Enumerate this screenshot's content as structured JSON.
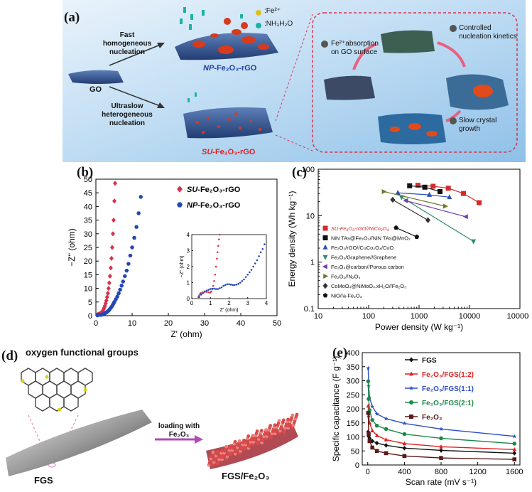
{
  "panel_a": {
    "label": "(a)",
    "legend_fe": ":Fe²⁺",
    "legend_nh3": ":NH₃H₂O",
    "go": "GO",
    "fast_line1": "Fast",
    "fast_line2": "homogeneous",
    "fast_line3": "nucleation",
    "slow_line1": "Ultraslow",
    "slow_line2": "heterogeneous",
    "slow_line3": "nucleation",
    "np_prefix": "NP",
    "np_suffix": "-Fe₂O₃-rGO",
    "su_prefix": "SU",
    "su_suffix": "-Fe₂O₃-rGO",
    "step1_line1": "Fe²⁺absorption",
    "step1_line2": "on GO surface",
    "step2_line1": "Controlled",
    "step2_line2": "nucleation kinetics",
    "step3_line1": "Slow crystal",
    "step3_line2": "growth",
    "colors": {
      "bg": "#a9cfee",
      "np": "#1f3fa8",
      "su": "#e02020",
      "sheet": "#2e4f8a",
      "particle": "#d83a1e"
    }
  },
  "panel_b_label": "(b)",
  "panel_c_label": "(c)",
  "panel_d": {
    "label": "(d)",
    "title": "oxygen functional groups",
    "fgs": "FGS",
    "arrow_line1": "loading with",
    "arrow_line2": "Fe₂O₃",
    "product": "FGS/Fe₂O₃"
  },
  "panel_e_label": "(e)",
  "chart_data": [
    {
      "id": "b",
      "type": "scatter",
      "xlabel": "Z' (ohm)",
      "ylabel": "−Z'' (ohm)",
      "xlim": [
        0,
        50
      ],
      "ylim": [
        0,
        50
      ],
      "xticks": [
        0,
        10,
        20,
        30,
        40,
        50
      ],
      "yticks": [
        0,
        5,
        10,
        15,
        20,
        25,
        30,
        35,
        40,
        45,
        50
      ],
      "legend": [
        {
          "prefix": "SU",
          "suffix": "-Fe₂O₃-rGO",
          "color": "#d8324a",
          "marker": "diamond"
        },
        {
          "prefix": "NP",
          "suffix": "-Fe₂O₃-rGO",
          "color": "#2546b5",
          "marker": "hexagon"
        }
      ],
      "series": [
        {
          "name": "SU-Fe₂O₃-rGO",
          "color": "#d8324a",
          "x": [
            0.4,
            0.5,
            0.7,
            0.9,
            1.1,
            1.3,
            1.5,
            1.7,
            1.9,
            2.1,
            2.3,
            2.5,
            2.7,
            2.9,
            3.1,
            3.3,
            3.5,
            3.7,
            3.9,
            4.1,
            4.3,
            4.5,
            4.7,
            4.9,
            5.1,
            5.3
          ],
          "y": [
            0.2,
            0.4,
            0.5,
            0.6,
            0.7,
            0.9,
            1.1,
            1.4,
            1.8,
            2.3,
            2.9,
            3.6,
            4.5,
            5.5,
            6.8,
            8.2,
            10,
            12,
            14.5,
            17.5,
            21,
            25,
            30,
            35,
            42,
            48.5
          ]
        },
        {
          "name": "NP-Fe₂O₃-rGO",
          "color": "#2546b5",
          "x": [
            0.4,
            0.6,
            0.9,
            1.2,
            1.5,
            1.8,
            2.1,
            2.4,
            2.7,
            3.0,
            3.3,
            3.6,
            3.9,
            4.2,
            4.5,
            4.8,
            5.1,
            5.5,
            5.9,
            6.3,
            6.7,
            7.1,
            7.5,
            8.0,
            8.5,
            9.0,
            9.5,
            10.0,
            10.6,
            11.2,
            11.8,
            12.4
          ],
          "y": [
            0.2,
            0.3,
            0.3,
            0.3,
            0.3,
            0.4,
            0.6,
            0.8,
            1.0,
            1.3,
            1.6,
            2.0,
            2.5,
            3.0,
            3.6,
            4.3,
            5.0,
            6.0,
            7.0,
            8.2,
            9.5,
            11,
            12.5,
            14.5,
            16.5,
            19,
            22,
            25,
            28.5,
            32.5,
            37.5,
            43.5
          ]
        }
      ]
    },
    {
      "id": "b_inset",
      "type": "scatter",
      "xlabel": "Z' (ohm)",
      "ylabel": "−Z'' (ohm)",
      "xlim": [
        0,
        4
      ],
      "ylim": [
        0,
        4
      ],
      "xticks": [
        0,
        1,
        2,
        3,
        4
      ],
      "yticks": [
        0,
        1,
        2,
        3,
        4
      ],
      "series": [
        {
          "name": "SU-Fe₂O₃-rGO",
          "color": "#d8324a",
          "x": [
            0.35,
            0.4,
            0.45,
            0.5,
            0.6,
            0.7,
            0.8,
            0.9,
            1.0,
            1.05,
            1.1,
            1.15,
            1.2,
            1.25,
            1.3,
            1.35,
            1.38,
            1.42,
            1.46,
            1.5
          ],
          "y": [
            0.1,
            0.2,
            0.3,
            0.35,
            0.4,
            0.42,
            0.42,
            0.4,
            0.38,
            0.45,
            0.6,
            0.8,
            1.1,
            1.5,
            2.0,
            2.5,
            2.9,
            3.3,
            3.7,
            4.0
          ]
        },
        {
          "name": "NP-Fe₂O₃-rGO",
          "color": "#2546b5",
          "x": [
            0.4,
            0.5,
            0.6,
            0.7,
            0.8,
            0.9,
            1.0,
            1.1,
            1.2,
            1.3,
            1.4,
            1.5,
            1.6,
            1.7,
            1.8,
            1.9,
            2.0,
            2.1,
            2.2,
            2.3,
            2.4,
            2.5,
            2.6,
            2.7,
            2.8,
            2.9,
            3.0,
            3.1,
            3.2,
            3.3,
            3.4,
            3.5,
            3.6,
            3.7,
            3.8,
            3.9
          ],
          "y": [
            0.1,
            0.25,
            0.35,
            0.45,
            0.5,
            0.55,
            0.6,
            0.62,
            0.62,
            0.6,
            0.6,
            0.65,
            0.7,
            0.8,
            0.85,
            0.9,
            0.9,
            0.88,
            0.85,
            0.85,
            0.88,
            0.92,
            1.0,
            1.1,
            1.2,
            1.35,
            1.5,
            1.65,
            1.8,
            2.0,
            2.2,
            2.4,
            2.65,
            2.9,
            3.1,
            3.4
          ]
        }
      ]
    },
    {
      "id": "c",
      "type": "line",
      "xscale": "log",
      "yscale": "log",
      "xlabel": "Power density (W kg⁻¹)",
      "ylabel": "Energy density (Wh kg⁻¹)",
      "xlim": [
        10,
        100000
      ],
      "ylim": [
        0.1,
        100
      ],
      "xticks": [
        10,
        100,
        1000,
        10000,
        100000
      ],
      "yticks": [
        0.1,
        1,
        10,
        100
      ],
      "series": [
        {
          "name": "SU-Fe₃O₃-rGO//NiCo₂O₄",
          "color": "#d42a2a",
          "marker": "square",
          "x": [
            950,
            1900,
            3800,
            7600,
            15500
          ],
          "y": [
            45,
            43,
            39,
            30,
            19
          ]
        },
        {
          "name": "NiN TAs@Fe₂O₃//NiN TAs@MnO₂",
          "color": "#111111",
          "marker": "square",
          "x": [
            650,
            1300,
            2600
          ],
          "y": [
            44,
            41,
            33
          ]
        },
        {
          "name": "Fe₂O₃/rGO//CuCo₂O₄/CuO",
          "color": "#2b4fb3",
          "marker": "triangle-up",
          "x": [
            380,
            1600,
            4000
          ],
          "y": [
            31,
            28,
            25
          ]
        },
        {
          "name": "Fe₂O₃/Graphene//Graphene",
          "color": "#2e8a68",
          "marker": "triangle-down",
          "x": [
            450,
            12000
          ],
          "y": [
            25,
            2.8
          ]
        },
        {
          "name": "Fe₃O₄@carbon//Porous carbon",
          "color": "#6a3fb0",
          "marker": "triangle-left",
          "x": [
            550,
            8500
          ],
          "y": [
            21,
            9.5
          ]
        },
        {
          "name": "Fe₂O₃//N₂O₅",
          "color": "#6b7a2a",
          "marker": "triangle-right",
          "x": [
            200,
            3300
          ],
          "y": [
            33,
            16
          ]
        },
        {
          "name": "CoMoO₄@NiMoO₄.xH₂O//Fe₂O₃",
          "color": "#333333",
          "marker": "diamond",
          "x": [
            300,
            1500
          ],
          "y": [
            22,
            8
          ]
        },
        {
          "name": "NiO//a-Fe₂O₃",
          "color": "#111111",
          "marker": "pentagon",
          "x": [
            350,
            900
          ],
          "y": [
            5.5,
            3.5
          ]
        }
      ],
      "legend_labels": [
        {
          "text": "SU-Fe₃O₃-rGO//NiCo₂O₄",
          "color": "#d42a2a"
        },
        {
          "text": "NiN TAs@Fe₂O₃//NiN TAs@MnO₂",
          "color": "#111111"
        },
        {
          "text": "Fe₂O₃/rGO//CuCo₂O₄/CuO",
          "color": "#111111"
        },
        {
          "text": "Fe₂O₃/Graphene//Graphene",
          "color": "#111111"
        },
        {
          "text": "Fe₃O₄@carbon//Porous carbon",
          "color": "#111111"
        },
        {
          "text": "Fe₂O₃//N₂O₅",
          "color": "#111111"
        },
        {
          "text": "CoMoO₄@NiMoO₄.xH₂O//Fe₂O₃",
          "color": "#111111"
        },
        {
          "text": "NiO//a-Fe₂O₃",
          "color": "#111111"
        }
      ]
    },
    {
      "id": "e",
      "type": "line",
      "xlabel": "Scan rate (mV s⁻¹)",
      "ylabel": "Specific capacitance (F g⁻¹)",
      "xlim": [
        -60,
        1660
      ],
      "ylim": [
        0,
        400
      ],
      "xticks": [
        0,
        400,
        800,
        1200,
        1600
      ],
      "yticks": [
        0,
        50,
        100,
        150,
        200,
        250,
        300,
        350,
        400
      ],
      "x": [
        5,
        10,
        20,
        50,
        100,
        200,
        400,
        800,
        1600
      ],
      "series": [
        {
          "name": "FGS",
          "color": "#111111",
          "marker": "diamond",
          "y": [
            118,
            102,
            95,
            85,
            78,
            70,
            60,
            52,
            42
          ]
        },
        {
          "name": "Fe₂O₃/FGS(1:2)",
          "color": "#e02020",
          "marker": "triangle",
          "y": [
            210,
            175,
            150,
            122,
            105,
            90,
            76,
            65,
            55
          ]
        },
        {
          "name": "Fe₂O₃/FGS(1:1)",
          "color": "#2c4fc0",
          "marker": "star",
          "y": [
            345,
            282,
            240,
            208,
            182,
            165,
            148,
            128,
            102
          ]
        },
        {
          "name": "Fe₂O₃/FGS(2:1)",
          "color": "#1d8a4a",
          "marker": "circle",
          "y": [
            298,
            235,
            195,
            160,
            140,
            128,
            110,
            95,
            76
          ]
        },
        {
          "name": "Fe₂O₃",
          "color": "#5a1a1a",
          "marker": "square",
          "y": [
            185,
            110,
            85,
            62,
            50,
            42,
            32,
            25,
            20
          ]
        }
      ]
    }
  ]
}
